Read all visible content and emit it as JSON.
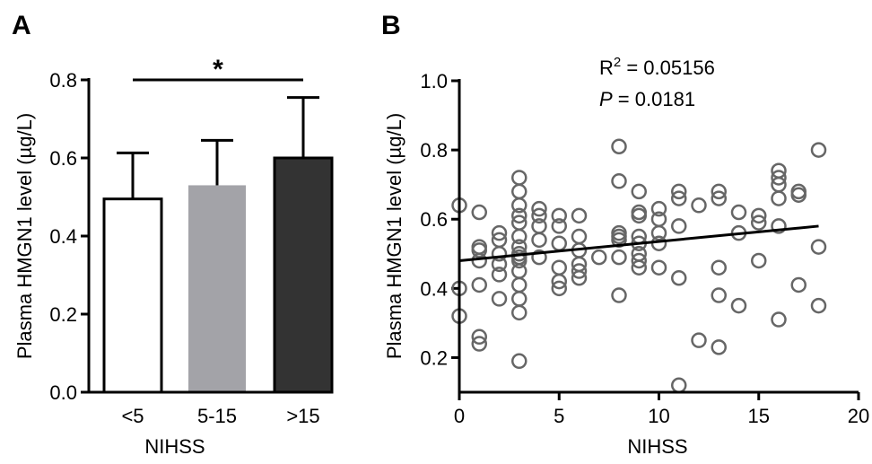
{
  "chart_data": [
    {
      "panel": "A",
      "type": "bar",
      "categories": [
        "<5",
        "5-15",
        ">15"
      ],
      "values": [
        0.495,
        0.53,
        0.6
      ],
      "errors": [
        0.118,
        0.115,
        0.155
      ],
      "colors": [
        "#ffffff",
        "#a3a3a8",
        "#333333"
      ],
      "xlabel": "NIHSS",
      "ylabel": "Plasma HMGN1 level (µg/L)",
      "ylim": [
        0,
        0.8
      ],
      "yticks": [
        "0.0",
        "0.2",
        "0.4",
        "0.6",
        "0.8"
      ],
      "significance": {
        "from": 0,
        "to": 2,
        "y": 0.8,
        "label": "*"
      },
      "grid": false
    },
    {
      "panel": "B",
      "type": "scatter",
      "xlabel": "NIHSS",
      "ylabel": "Plasma HMGN1 level (µg/L)",
      "xlim": [
        0,
        20
      ],
      "ylim": [
        0.1,
        1.0
      ],
      "xticks": [
        "0",
        "5",
        "10",
        "15",
        "20"
      ],
      "yticks": [
        "0.2",
        "0.4",
        "0.6",
        "0.8",
        "1.0"
      ],
      "annotations": {
        "r2_base": "R",
        "r2_sup": "2",
        "r2_value": " = 0.05156",
        "p_label": "P",
        "p_value": " = 0.0181"
      },
      "regression": {
        "x": [
          0,
          18
        ],
        "y": [
          0.48,
          0.58
        ]
      },
      "grid": false,
      "points": [
        [
          0,
          0.64
        ],
        [
          0,
          0.4
        ],
        [
          0,
          0.32
        ],
        [
          1,
          0.62
        ],
        [
          1,
          0.52
        ],
        [
          1,
          0.51
        ],
        [
          1,
          0.48
        ],
        [
          1,
          0.41
        ],
        [
          1,
          0.26
        ],
        [
          1,
          0.24
        ],
        [
          2,
          0.56
        ],
        [
          2,
          0.54
        ],
        [
          2,
          0.5
        ],
        [
          2,
          0.47
        ],
        [
          2,
          0.44
        ],
        [
          2,
          0.37
        ],
        [
          3,
          0.72
        ],
        [
          3,
          0.68
        ],
        [
          3,
          0.64
        ],
        [
          3,
          0.61
        ],
        [
          3,
          0.59
        ],
        [
          3,
          0.55
        ],
        [
          3,
          0.52
        ],
        [
          3,
          0.5
        ],
        [
          3,
          0.49
        ],
        [
          3,
          0.48
        ],
        [
          3,
          0.45
        ],
        [
          3,
          0.41
        ],
        [
          3,
          0.37
        ],
        [
          3,
          0.33
        ],
        [
          3,
          0.19
        ],
        [
          4,
          0.63
        ],
        [
          4,
          0.61
        ],
        [
          4,
          0.58
        ],
        [
          4,
          0.54
        ],
        [
          4,
          0.49
        ],
        [
          5,
          0.61
        ],
        [
          5,
          0.58
        ],
        [
          5,
          0.53
        ],
        [
          5,
          0.46
        ],
        [
          5,
          0.42
        ],
        [
          5,
          0.4
        ],
        [
          6,
          0.61
        ],
        [
          6,
          0.55
        ],
        [
          6,
          0.51
        ],
        [
          6,
          0.47
        ],
        [
          6,
          0.45
        ],
        [
          6,
          0.43
        ],
        [
          7,
          0.49
        ],
        [
          8,
          0.81
        ],
        [
          8,
          0.71
        ],
        [
          8,
          0.56
        ],
        [
          8,
          0.55
        ],
        [
          8,
          0.54
        ],
        [
          8,
          0.49
        ],
        [
          8,
          0.38
        ],
        [
          9,
          0.68
        ],
        [
          9,
          0.62
        ],
        [
          9,
          0.61
        ],
        [
          9,
          0.55
        ],
        [
          9,
          0.53
        ],
        [
          9,
          0.5
        ],
        [
          9,
          0.48
        ],
        [
          9,
          0.46
        ],
        [
          10,
          0.63
        ],
        [
          10,
          0.6
        ],
        [
          10,
          0.56
        ],
        [
          10,
          0.53
        ],
        [
          10,
          0.46
        ],
        [
          11,
          0.68
        ],
        [
          11,
          0.66
        ],
        [
          11,
          0.58
        ],
        [
          11,
          0.43
        ],
        [
          11,
          0.12
        ],
        [
          12,
          0.64
        ],
        [
          12,
          0.25
        ],
        [
          13,
          0.68
        ],
        [
          13,
          0.66
        ],
        [
          13,
          0.46
        ],
        [
          13,
          0.38
        ],
        [
          13,
          0.23
        ],
        [
          14,
          0.62
        ],
        [
          14,
          0.56
        ],
        [
          14,
          0.35
        ],
        [
          15,
          0.61
        ],
        [
          15,
          0.59
        ],
        [
          15,
          0.48
        ],
        [
          16,
          0.74
        ],
        [
          16,
          0.72
        ],
        [
          16,
          0.7
        ],
        [
          16,
          0.66
        ],
        [
          16,
          0.58
        ],
        [
          16,
          0.31
        ],
        [
          17,
          0.68
        ],
        [
          17,
          0.67
        ],
        [
          17,
          0.41
        ],
        [
          18,
          0.8
        ],
        [
          18,
          0.52
        ],
        [
          18,
          0.35
        ]
      ]
    }
  ]
}
